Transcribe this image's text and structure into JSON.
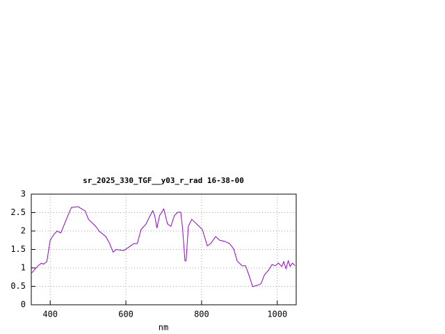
{
  "chart_data": {
    "type": "line",
    "title": "sr_2025_330_TGF__y03_r_rad 16-38-00",
    "x_label": "nm",
    "x": [
      350,
      368,
      377,
      382,
      391,
      400,
      409,
      418,
      428,
      446,
      456,
      474,
      483,
      492,
      501,
      520,
      529,
      547,
      557,
      566,
      575,
      594,
      603,
      621,
      630,
      640,
      653,
      662,
      671,
      676,
      682,
      689,
      700,
      710,
      719,
      728,
      737,
      745,
      750,
      756,
      759,
      765,
      774,
      783,
      793,
      802,
      815,
      824,
      837,
      848,
      861,
      874,
      885,
      894,
      907,
      916,
      925,
      935,
      947,
      957,
      966,
      977,
      986,
      995,
      1003,
      1012,
      1017,
      1023,
      1029,
      1034,
      1040,
      1047
    ],
    "series": [
      {
        "name": "rad",
        "color": "#9400d3",
        "values": [
          0.85,
          1.06,
          1.13,
          1.1,
          1.17,
          1.75,
          1.9,
          2.0,
          1.95,
          2.4,
          2.64,
          2.66,
          2.6,
          2.55,
          2.32,
          2.13,
          2.0,
          1.85,
          1.66,
          1.43,
          1.5,
          1.47,
          1.53,
          1.66,
          1.66,
          2.04,
          2.19,
          2.38,
          2.55,
          2.42,
          2.08,
          2.42,
          2.6,
          2.19,
          2.13,
          2.42,
          2.51,
          2.51,
          2.04,
          1.19,
          1.19,
          2.13,
          2.32,
          2.23,
          2.13,
          2.04,
          1.6,
          1.66,
          1.85,
          1.75,
          1.72,
          1.66,
          1.51,
          1.19,
          1.06,
          1.06,
          0.81,
          0.49,
          0.53,
          0.57,
          0.81,
          0.94,
          1.09,
          1.06,
          1.13,
          1.04,
          1.17,
          0.98,
          1.19,
          1.04,
          1.13,
          1.06
        ]
      }
    ],
    "xlim": [
      350,
      1050
    ],
    "ylim": [
      0,
      3
    ],
    "xticks": [
      400,
      600,
      800,
      1000
    ],
    "yticks": [
      0,
      0.5,
      1,
      1.5,
      2,
      2.5,
      3
    ],
    "grid": true
  }
}
